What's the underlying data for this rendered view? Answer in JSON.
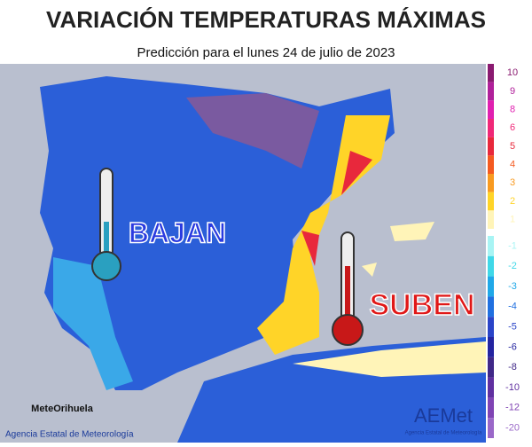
{
  "header": {
    "title": "VARIACIÓN TEMPERATURAS MÁXIMAS",
    "subtitle": "Predicción para el lunes 24 de julio de 2023"
  },
  "map": {
    "label_down": "BAJAN",
    "label_up": "SUBEN"
  },
  "legend": [
    {
      "value": 10,
      "color": "#8a1a70"
    },
    {
      "value": 9,
      "color": "#b0209a"
    },
    {
      "value": 8,
      "color": "#e020b0"
    },
    {
      "value": 6,
      "color": "#f02878"
    },
    {
      "value": 5,
      "color": "#e8283c"
    },
    {
      "value": 4,
      "color": "#f45a20"
    },
    {
      "value": 3,
      "color": "#f89a20"
    },
    {
      "value": 2,
      "color": "#ffd428"
    },
    {
      "value": 1,
      "color": "#fff4b8"
    },
    {
      "value": -1,
      "color": "#a8f4f4"
    },
    {
      "value": -2,
      "color": "#40d8e8"
    },
    {
      "value": -3,
      "color": "#20a8e8"
    },
    {
      "value": -4,
      "color": "#2070e0"
    },
    {
      "value": -5,
      "color": "#2a44c8"
    },
    {
      "value": -6,
      "color": "#2424a0"
    },
    {
      "value": -8,
      "color": "#402888"
    },
    {
      "value": -10,
      "color": "#6030a0"
    },
    {
      "value": -12,
      "color": "#8044b4"
    },
    {
      "value": -20,
      "color": "#9a68c8"
    }
  ],
  "footer": {
    "left_logo": "MeteOrihuela",
    "left_text": "Agencia Estatal de Meteorología",
    "right_logo": "AEMet",
    "right_text": "Agencia Estatal de Meteorología"
  }
}
